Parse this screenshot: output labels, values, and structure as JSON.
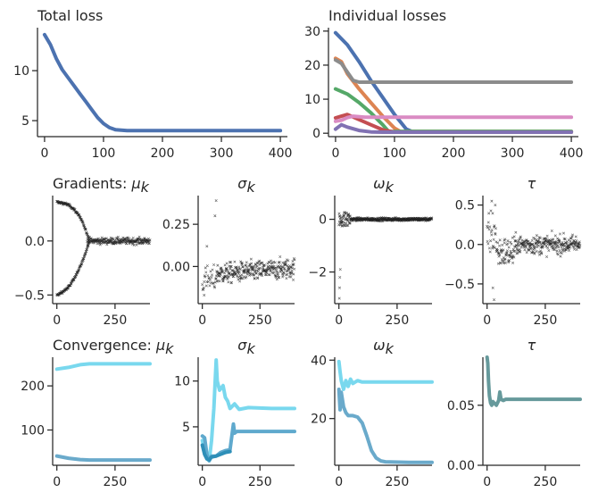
{
  "figure": {
    "description_free": true
  },
  "chart_data": [
    {
      "id": "total-loss",
      "type": "line",
      "title": "Total loss",
      "xlim": [
        -12,
        412
      ],
      "ylim": [
        3.4,
        14.3
      ],
      "xticks": [
        0,
        100,
        200,
        300,
        400
      ],
      "yticks": [
        5,
        10
      ],
      "series": [
        {
          "name": "total",
          "color": "#4c72b0",
          "x": [
            0,
            10,
            20,
            30,
            40,
            50,
            60,
            70,
            80,
            90,
            100,
            110,
            120,
            130,
            140,
            200,
            300,
            400
          ],
          "y": [
            13.6,
            12.6,
            11.2,
            10.1,
            9.3,
            8.5,
            7.7,
            6.9,
            6.1,
            5.3,
            4.7,
            4.3,
            4.1,
            4.05,
            4.0,
            4.0,
            4.0,
            4.0
          ]
        }
      ]
    },
    {
      "id": "individual-losses",
      "type": "line",
      "title": "Individual losses",
      "xlim": [
        -12,
        412
      ],
      "ylim": [
        -1,
        31
      ],
      "xticks": [
        0,
        100,
        200,
        300,
        400
      ],
      "yticks": [
        0,
        10,
        20,
        30
      ],
      "series": [
        {
          "name": "blue",
          "color": "#4c72b0",
          "x": [
            0,
            20,
            40,
            60,
            80,
            100,
            120,
            130,
            400
          ],
          "y": [
            29.5,
            26.0,
            21.0,
            15.5,
            10.5,
            5.5,
            1.2,
            0.5,
            0.5
          ]
        },
        {
          "name": "orange",
          "color": "#dd8452",
          "x": [
            0,
            10,
            20,
            40,
            60,
            80,
            100,
            110,
            400
          ],
          "y": [
            22.0,
            21.0,
            17.5,
            13.0,
            9.0,
            5.0,
            1.5,
            0.5,
            0.5
          ]
        },
        {
          "name": "grey",
          "color": "#8c8c8c",
          "x": [
            0,
            10,
            20,
            30,
            40,
            400
          ],
          "y": [
            21.5,
            20.5,
            18.0,
            15.5,
            15.0,
            15.0
          ]
        },
        {
          "name": "green",
          "color": "#55a868",
          "x": [
            0,
            20,
            40,
            60,
            80,
            90,
            400
          ],
          "y": [
            13.0,
            11.5,
            9.0,
            6.0,
            2.5,
            0.5,
            0.5
          ]
        },
        {
          "name": "red",
          "color": "#c44e52",
          "x": [
            0,
            10,
            20,
            40,
            60,
            80,
            100,
            400
          ],
          "y": [
            4.5,
            5.0,
            5.5,
            4.0,
            2.5,
            1.0,
            0.3,
            0.3
          ]
        },
        {
          "name": "pink",
          "color": "#da8bc3",
          "x": [
            0,
            10,
            20,
            30,
            50,
            400
          ],
          "y": [
            3.5,
            3.8,
            4.6,
            5.0,
            4.7,
            4.7
          ]
        },
        {
          "name": "purple",
          "color": "#8172b3",
          "x": [
            0,
            10,
            20,
            40,
            60,
            80,
            400
          ],
          "y": [
            1.2,
            2.5,
            1.8,
            0.8,
            0.4,
            0.3,
            0.3
          ]
        }
      ]
    },
    {
      "id": "grad-mu",
      "type": "scatter",
      "title": "Gradients: ",
      "title_symbol": "μ",
      "title_sub": "k",
      "xlim": [
        -18,
        400
      ],
      "ylim": [
        -0.58,
        0.42
      ],
      "xticks": [
        0,
        250
      ],
      "yticks": [
        -0.5,
        0.0
      ],
      "ytick_labels": [
        "−0.5",
        "0.0"
      ],
      "pattern": "grad_mu"
    },
    {
      "id": "grad-sigma",
      "type": "scatter",
      "title": "",
      "title_symbol": "σ",
      "title_sub": "k",
      "xlim": [
        -18,
        400
      ],
      "ylim": [
        -0.22,
        0.42
      ],
      "xticks": [
        0,
        250
      ],
      "yticks": [
        0.0,
        0.25
      ],
      "ytick_labels": [
        "0.00",
        "0.25"
      ],
      "pattern": "grad_sigma"
    },
    {
      "id": "grad-omega",
      "type": "scatter",
      "title": "",
      "title_symbol": "ω",
      "title_sub": "k",
      "xlim": [
        -18,
        400
      ],
      "ylim": [
        -3.2,
        0.9
      ],
      "xticks": [
        0,
        250
      ],
      "yticks": [
        -2,
        0
      ],
      "ytick_labels": [
        "−2",
        "0"
      ],
      "pattern": "grad_omega"
    },
    {
      "id": "grad-tau",
      "type": "scatter",
      "title": "",
      "title_symbol": "τ",
      "title_sub": "",
      "xlim": [
        -18,
        400
      ],
      "ylim": [
        -0.75,
        0.62
      ],
      "xticks": [
        0,
        250
      ],
      "yticks": [
        -0.5,
        0.0,
        0.5
      ],
      "ytick_labels": [
        "−0.5",
        "0.0",
        "0.5"
      ],
      "pattern": "grad_tau"
    },
    {
      "id": "conv-mu",
      "type": "line",
      "title": "Convergence: ",
      "title_symbol": "μ",
      "title_sub": "k",
      "xlim": [
        -18,
        400
      ],
      "ylim": [
        20,
        265
      ],
      "xticks": [
        0,
        250
      ],
      "yticks": [
        100,
        200
      ],
      "series": [
        {
          "name": "mu-1",
          "color": "#79d8ee",
          "x": [
            0,
            50,
            100,
            140,
            400
          ],
          "y": [
            238,
            242,
            248,
            250,
            250
          ]
        },
        {
          "name": "mu-2",
          "color": "#6aaacb",
          "x": [
            0,
            50,
            100,
            140,
            400
          ],
          "y": [
            41,
            36,
            33,
            32,
            32
          ]
        }
      ]
    },
    {
      "id": "conv-sigma",
      "type": "line",
      "title": "",
      "title_symbol": "σ",
      "title_sub": "k",
      "xlim": [
        -18,
        400
      ],
      "ylim": [
        0.8,
        12.6
      ],
      "xticks": [
        0,
        250
      ],
      "yticks": [
        5,
        10
      ],
      "series": [
        {
          "name": "sigma-1",
          "color": "#79d8ee",
          "x": [
            0,
            10,
            20,
            30,
            40,
            50,
            60,
            65,
            75,
            90,
            100,
            110,
            120,
            140,
            160,
            200,
            300,
            400
          ],
          "y": [
            3.5,
            2.5,
            1.5,
            1.3,
            3.5,
            7.0,
            12.3,
            10.0,
            9.0,
            9.5,
            8.2,
            7.8,
            7.0,
            7.5,
            6.9,
            7.1,
            7.0,
            7.0
          ]
        },
        {
          "name": "sigma-2",
          "color": "#5fa9cd",
          "x": [
            0,
            10,
            20,
            30,
            40,
            60,
            80,
            100,
            120,
            135,
            140,
            150,
            200,
            300,
            400
          ],
          "y": [
            4.0,
            3.8,
            2.0,
            1.3,
            1.8,
            1.8,
            2.2,
            2.4,
            2.5,
            5.3,
            4.3,
            4.5,
            4.5,
            4.5,
            4.5
          ]
        },
        {
          "name": "sigma-3",
          "color": "#2e8fb8",
          "x": [
            0,
            10,
            20,
            30,
            40,
            60,
            80,
            100,
            120
          ],
          "y": [
            3.0,
            2.0,
            1.5,
            1.4,
            1.7,
            1.8,
            2.0,
            2.2,
            2.3
          ]
        }
      ]
    },
    {
      "id": "conv-omega",
      "type": "line",
      "title": "",
      "title_symbol": "ω",
      "title_sub": "k",
      "xlim": [
        -18,
        400
      ],
      "ylim": [
        4,
        41
      ],
      "xticks": [
        0,
        250
      ],
      "yticks": [
        20,
        40
      ],
      "series": [
        {
          "name": "omega-1",
          "color": "#79d8ee",
          "x": [
            0,
            5,
            10,
            20,
            30,
            40,
            50,
            60,
            80,
            100,
            150,
            200,
            300,
            400
          ],
          "y": [
            39.5,
            36.0,
            33.0,
            30.0,
            33.0,
            31.0,
            33.5,
            32.0,
            33.0,
            32.5,
            32.5,
            32.5,
            32.5,
            32.5
          ]
        },
        {
          "name": "omega-2",
          "color": "#6aaacb",
          "x": [
            0,
            5,
            10,
            20,
            30,
            40,
            60,
            80,
            100,
            120,
            140,
            160,
            180,
            200,
            300,
            400
          ],
          "y": [
            30.0,
            23.0,
            29.0,
            24.0,
            22.0,
            21.0,
            21.0,
            20.5,
            18.5,
            14.0,
            9.0,
            6.5,
            5.5,
            5.2,
            5.0,
            5.0
          ]
        }
      ]
    },
    {
      "id": "conv-tau",
      "type": "line",
      "title": "",
      "title_symbol": "τ",
      "title_sub": "",
      "xlim": [
        -18,
        400
      ],
      "ylim": [
        0.0,
        0.09
      ],
      "xticks": [
        0,
        250
      ],
      "yticks": [
        0.0,
        0.05
      ],
      "ytick_labels": [
        "0.00",
        "0.05"
      ],
      "series": [
        {
          "name": "tau",
          "color": "#66999b",
          "x": [
            0,
            3,
            6,
            10,
            15,
            20,
            25,
            30,
            40,
            50,
            55,
            60,
            70,
            80,
            100,
            150,
            200,
            300,
            400
          ],
          "y": [
            0.09,
            0.085,
            0.07,
            0.058,
            0.052,
            0.05,
            0.053,
            0.052,
            0.05,
            0.054,
            0.061,
            0.055,
            0.054,
            0.055,
            0.055,
            0.055,
            0.055,
            0.055,
            0.055
          ]
        }
      ]
    }
  ]
}
